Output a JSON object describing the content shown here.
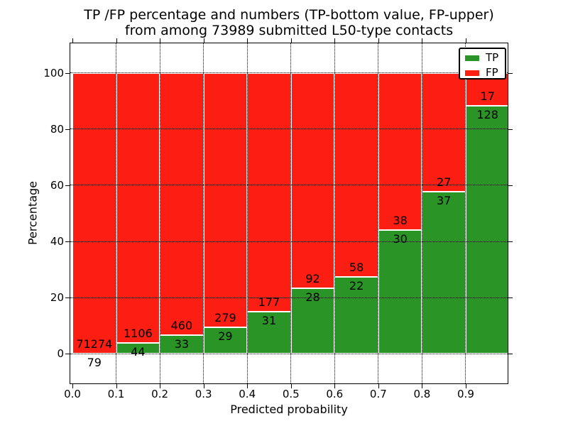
{
  "title": {
    "line1": "TP /FP percentage and numbers (TP-bottom value, FP-upper)",
    "line2": "from among 73989 submitted L50-type contacts"
  },
  "axes": {
    "xlabel": "Predicted probability",
    "ylabel": "Percentage",
    "x_tick_labels": [
      "0.0",
      "0.1",
      "0.2",
      "0.3",
      "0.4",
      "0.5",
      "0.6",
      "0.7",
      "0.8",
      "0.9"
    ],
    "y_tick_values": [
      0,
      20,
      40,
      60,
      80,
      100
    ]
  },
  "legend": {
    "entries": [
      {
        "label": "TP",
        "color": "#2a9427"
      },
      {
        "label": "FP",
        "color": "#fc1d13"
      }
    ]
  },
  "chart_data": {
    "type": "bar",
    "stacked": true,
    "title": "TP /FP percentage and numbers (TP-bottom value, FP-upper) from among 73989 submitted L50-type contacts",
    "xlabel": "Predicted probability",
    "ylabel": "Percentage",
    "total_contacts": 73989,
    "bins": [
      "0.0-0.1",
      "0.1-0.2",
      "0.2-0.3",
      "0.3-0.4",
      "0.4-0.5",
      "0.5-0.6",
      "0.6-0.7",
      "0.7-0.8",
      "0.8-0.9",
      "0.9-1.0"
    ],
    "series": [
      {
        "name": "TP",
        "color": "#2a9427",
        "counts": [
          79,
          44,
          33,
          29,
          31,
          28,
          22,
          30,
          37,
          128
        ],
        "percent": [
          0.11,
          3.83,
          6.69,
          9.42,
          14.9,
          23.33,
          27.5,
          44.12,
          57.81,
          88.28
        ]
      },
      {
        "name": "FP",
        "color": "#fc1d13",
        "counts": [
          71274,
          1106,
          460,
          279,
          177,
          92,
          58,
          38,
          27,
          17
        ],
        "percent": [
          99.89,
          96.17,
          93.31,
          90.58,
          85.1,
          76.67,
          72.5,
          55.88,
          42.19,
          11.72
        ]
      }
    ],
    "annotation_note": "TP-bottom value, FP-upper",
    "xlim": [
      0,
      1.0
    ],
    "ylim": [
      -10.5,
      110.5
    ],
    "grid": "dotted",
    "bar_edge_color": "#ffffff",
    "legend_position": "upper right"
  }
}
